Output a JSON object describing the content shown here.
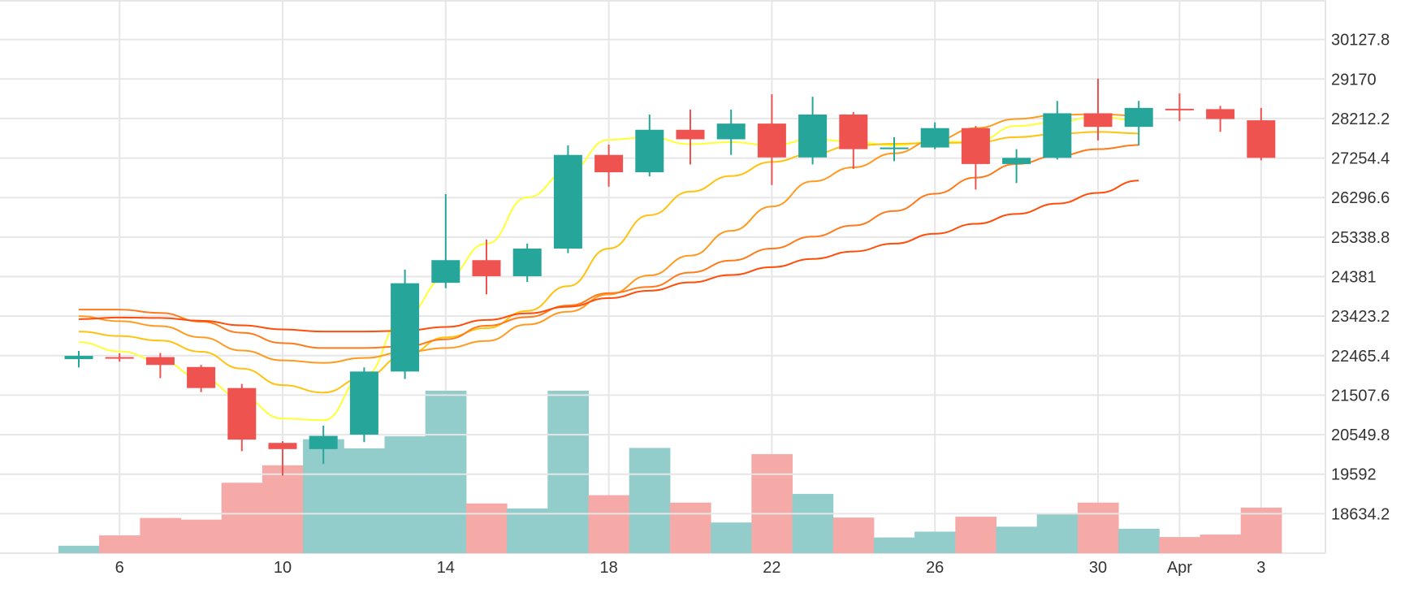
{
  "colors": {
    "up": "#26a69a",
    "down": "#ef5350",
    "volume_up": "#92cdcb",
    "volume_down": "#f5aaa8",
    "grid": "#e6e6e6",
    "ma_lines": [
      "#ffff33",
      "#ffc20e",
      "#ff9a1f",
      "#ff7a1a",
      "#ff4d0a"
    ]
  },
  "chart_data": {
    "type": "candlestick",
    "title": "",
    "xlabel": "",
    "ylabel": "",
    "x_ticks": [
      {
        "label": "6",
        "date": "03-06"
      },
      {
        "label": "10",
        "date": "03-10"
      },
      {
        "label": "14",
        "date": "03-14"
      },
      {
        "label": "18",
        "date": "03-18"
      },
      {
        "label": "22",
        "date": "03-22"
      },
      {
        "label": "26",
        "date": "03-26"
      },
      {
        "label": "30",
        "date": "03-30"
      },
      {
        "label": "Apr",
        "date": "04-01"
      },
      {
        "label": "3",
        "date": "04-03"
      }
    ],
    "y_ticks": [
      "30127.8",
      "29170",
      "28212.2",
      "27254.4",
      "26296.6",
      "25338.8",
      "24381",
      "23423.2",
      "22465.4",
      "21507.6",
      "20549.8",
      "19592",
      "18634.2"
    ],
    "ylim": [
      17676.4,
      31085.6
    ],
    "grid": true,
    "candles": [
      {
        "date": "03-05",
        "open": 22380,
        "high": 22580,
        "low": 22180,
        "close": 22460
      },
      {
        "date": "03-06",
        "open": 22430,
        "high": 22520,
        "low": 22320,
        "close": 22400
      },
      {
        "date": "03-07",
        "open": 22430,
        "high": 22530,
        "low": 21920,
        "close": 22240
      },
      {
        "date": "03-08",
        "open": 22190,
        "high": 22240,
        "low": 21580,
        "close": 21680
      },
      {
        "date": "03-09",
        "open": 21680,
        "high": 21780,
        "low": 20150,
        "close": 20430
      },
      {
        "date": "03-10",
        "open": 20350,
        "high": 20390,
        "low": 19560,
        "close": 20200
      },
      {
        "date": "03-11",
        "open": 20200,
        "high": 20770,
        "low": 19840,
        "close": 20520
      },
      {
        "date": "03-12",
        "open": 20550,
        "high": 22180,
        "low": 20370,
        "close": 22080
      },
      {
        "date": "03-13",
        "open": 22080,
        "high": 24550,
        "low": 21900,
        "close": 24220
      },
      {
        "date": "03-14",
        "open": 24230,
        "high": 26380,
        "low": 24100,
        "close": 24780
      },
      {
        "date": "03-15",
        "open": 24780,
        "high": 25280,
        "low": 23950,
        "close": 24390
      },
      {
        "date": "03-16",
        "open": 24390,
        "high": 25180,
        "low": 24250,
        "close": 25060
      },
      {
        "date": "03-17",
        "open": 25060,
        "high": 27560,
        "low": 24950,
        "close": 27330
      },
      {
        "date": "03-18",
        "open": 27330,
        "high": 27580,
        "low": 26560,
        "close": 26910
      },
      {
        "date": "03-19",
        "open": 26910,
        "high": 28310,
        "low": 26810,
        "close": 27940
      },
      {
        "date": "03-20",
        "open": 27940,
        "high": 28430,
        "low": 27100,
        "close": 27710
      },
      {
        "date": "03-21",
        "open": 27710,
        "high": 28430,
        "low": 27330,
        "close": 28090
      },
      {
        "date": "03-22",
        "open": 28090,
        "high": 28800,
        "low": 26600,
        "close": 27270
      },
      {
        "date": "03-23",
        "open": 27270,
        "high": 28740,
        "low": 27100,
        "close": 28310
      },
      {
        "date": "03-24",
        "open": 28310,
        "high": 28370,
        "low": 26990,
        "close": 27470
      },
      {
        "date": "03-25",
        "open": 27470,
        "high": 27760,
        "low": 27180,
        "close": 27510
      },
      {
        "date": "03-26",
        "open": 27510,
        "high": 28120,
        "low": 27470,
        "close": 27980
      },
      {
        "date": "03-27",
        "open": 27980,
        "high": 28030,
        "low": 26490,
        "close": 27110
      },
      {
        "date": "03-28",
        "open": 27110,
        "high": 27470,
        "low": 26650,
        "close": 27260
      },
      {
        "date": "03-29",
        "open": 27260,
        "high": 28640,
        "low": 27220,
        "close": 28340
      },
      {
        "date": "03-30",
        "open": 28340,
        "high": 29180,
        "low": 27680,
        "close": 28010
      },
      {
        "date": "03-31",
        "open": 28010,
        "high": 28640,
        "low": 27560,
        "close": 28470
      },
      {
        "date": "04-01",
        "open": 28450,
        "high": 28820,
        "low": 28150,
        "close": 28440
      },
      {
        "date": "04-02",
        "open": 28440,
        "high": 28520,
        "low": 27890,
        "close": 28200
      },
      {
        "date": "04-03",
        "open": 28170,
        "high": 28470,
        "low": 27200,
        "close": 27260
      }
    ],
    "volume": [
      18,
      43,
      85,
      81,
      170,
      212,
      275,
      253,
      282,
      392,
      120,
      108,
      392,
      140,
      254,
      122,
      74,
      239,
      143,
      86,
      38,
      52,
      88,
      64,
      96,
      122,
      59,
      39,
      45,
      110
    ],
    "volume_max": 392,
    "ma_series": [
      {
        "color": "#ffff33",
        "values": [
          22790,
          22570,
          22340,
          21920,
          21440,
          20940,
          20900,
          21980,
          23440,
          24350,
          25180,
          26300,
          26920,
          27700,
          27760,
          27590,
          27640,
          27560,
          27710,
          27650,
          27560,
          27660,
          27640,
          28030,
          28130,
          28260,
          28160
        ]
      },
      {
        "color": "#ffc20e",
        "values": [
          23050,
          22940,
          22830,
          22560,
          22150,
          21750,
          21570,
          21940,
          22470,
          22910,
          23130,
          23550,
          24150,
          25060,
          25870,
          26440,
          26820,
          27160,
          27360,
          27560,
          27600,
          27620,
          27630,
          27760,
          27840,
          27890,
          27850
        ]
      },
      {
        "color": "#ff9a1f",
        "values": [
          23420,
          23300,
          23180,
          22910,
          22590,
          22350,
          22290,
          22410,
          22550,
          22650,
          22820,
          23220,
          23530,
          23950,
          24410,
          24890,
          25490,
          26080,
          26690,
          27030,
          27370,
          27690,
          27980,
          28200,
          28300,
          28320,
          28280
        ]
      },
      {
        "color": "#ff7a1a",
        "values": [
          23580,
          23580,
          23500,
          23290,
          23020,
          22770,
          22650,
          22650,
          22690,
          22860,
          23190,
          23400,
          23680,
          23980,
          24130,
          24480,
          24770,
          25060,
          25350,
          25620,
          25970,
          26390,
          26780,
          27110,
          27310,
          27470,
          27570
        ]
      },
      {
        "color": "#ff4d0a",
        "values": [
          23350,
          23390,
          23380,
          23310,
          23200,
          23100,
          23050,
          23050,
          23070,
          23160,
          23330,
          23490,
          23650,
          23860,
          24040,
          24240,
          24420,
          24610,
          24810,
          24990,
          25180,
          25420,
          25660,
          25900,
          26150,
          26410,
          26710
        ]
      }
    ]
  }
}
